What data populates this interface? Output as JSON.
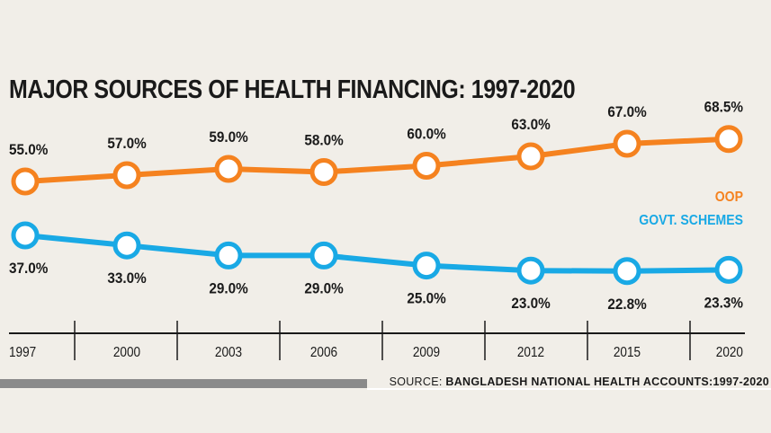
{
  "chart_data": {
    "type": "line",
    "title": "MAJOR SOURCES OF HEALTH FINANCING: 1997-2020",
    "categories": [
      "1997",
      "2000",
      "2003",
      "2006",
      "2009",
      "2012",
      "2015",
      "2020"
    ],
    "series": [
      {
        "name": "OOP",
        "color": "#f5821f",
        "values": [
          55.0,
          57.0,
          59.0,
          58.0,
          60.0,
          63.0,
          67.0,
          68.5
        ],
        "labels": [
          "55.0%",
          "57.0%",
          "59.0%",
          "58.0%",
          "60.0%",
          "63.0%",
          "67.0%",
          "68.5%"
        ]
      },
      {
        "name": "GOVT. SCHEMES",
        "color": "#19a9e5",
        "values": [
          37.0,
          33.0,
          29.0,
          29.0,
          25.0,
          23.0,
          22.8,
          23.3
        ],
        "labels": [
          "37.0%",
          "33.0%",
          "29.0%",
          "29.0%",
          "25.0%",
          "23.0%",
          "22.8%",
          "23.3%"
        ]
      }
    ],
    "legend": "right",
    "grid": false,
    "unit": "%"
  },
  "source": {
    "prefix": "SOURCE: ",
    "text": "BANGLADESH NATIONAL HEALTH ACCOUNTS:1997-2020"
  }
}
